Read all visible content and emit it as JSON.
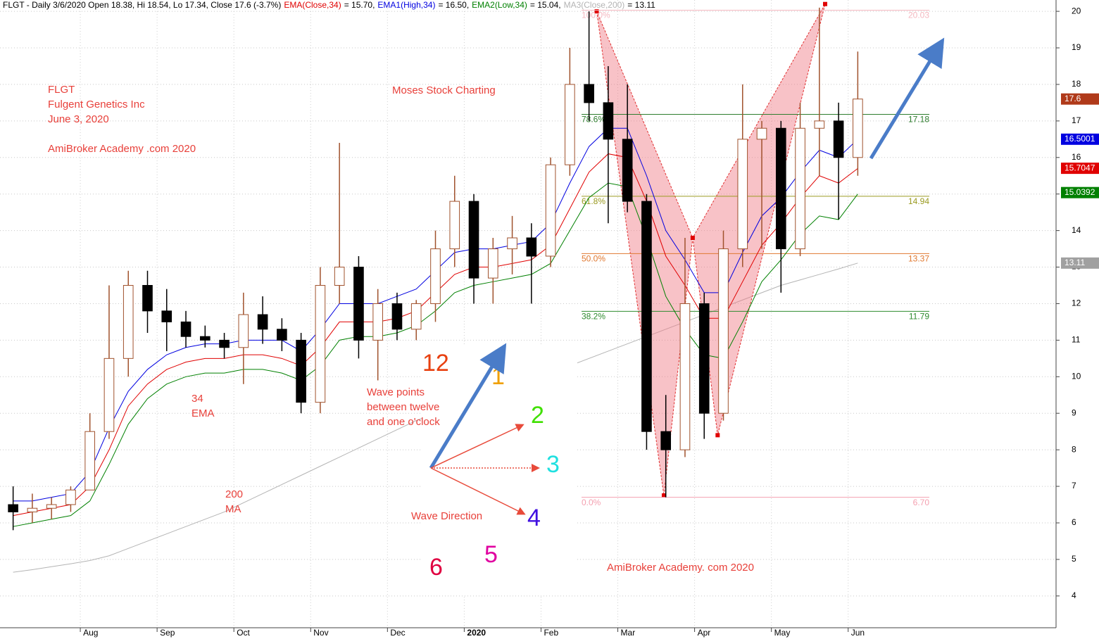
{
  "chart_data": {
    "type": "candlestick",
    "header": "FLGT - Daily 3/6/2020 Open 18.38, Hi 18.54, Lo 17.34, Close 17.6 (-3.7%)",
    "categories": [
      null,
      null,
      null,
      null,
      "Aug",
      null,
      null,
      null,
      "Sep",
      null,
      null,
      null,
      "Oct",
      null,
      null,
      null,
      "Nov",
      null,
      null,
      null,
      "Dec",
      null,
      null,
      null,
      "2020",
      null,
      null,
      null,
      "Feb",
      null,
      null,
      null,
      "Mar",
      null,
      null,
      null,
      "Apr",
      null,
      null,
      null,
      "May",
      null,
      null,
      null,
      "Jun"
    ],
    "open": [
      6.5,
      6.3,
      6.4,
      6.5,
      6.9,
      8.5,
      10.5,
      12.5,
      11.8,
      11.5,
      11.1,
      11.0,
      10.8,
      11.7,
      11.3,
      11.0,
      9.3,
      12.5,
      13.0,
      11.0,
      12.0,
      11.3,
      12.0,
      13.5,
      14.8,
      12.7,
      13.5,
      13.8,
      13.3,
      15.8,
      18.0,
      17.5,
      16.5,
      14.8,
      8.5,
      8.0,
      12.0,
      9.0,
      13.5,
      16.5,
      16.8,
      13.5,
      16.8,
      17.0,
      16.0
    ],
    "high": [
      7.0,
      6.8,
      6.7,
      7.0,
      9.0,
      12.5,
      12.9,
      12.9,
      12.4,
      11.8,
      11.4,
      11.2,
      12.3,
      12.2,
      11.6,
      11.2,
      13.0,
      16.4,
      13.3,
      12.4,
      12.3,
      12.1,
      14.0,
      15.5,
      15.0,
      13.8,
      14.4,
      14.2,
      16.0,
      19.0,
      20.0,
      18.5,
      18.0,
      15.0,
      9.5,
      13.8,
      12.3,
      14.0,
      18.0,
      17.0,
      17.0,
      17.5,
      20.1,
      17.5,
      18.9
    ],
    "low": [
      5.8,
      6.0,
      6.1,
      6.3,
      6.9,
      8.3,
      10.0,
      11.2,
      10.7,
      10.8,
      10.8,
      10.5,
      9.8,
      10.9,
      10.7,
      9.0,
      9.0,
      12.0,
      10.5,
      9.9,
      11.0,
      11.0,
      11.5,
      13.0,
      12.0,
      12.0,
      12.8,
      12.0,
      13.0,
      15.5,
      17.0,
      14.2,
      14.5,
      8.0,
      6.7,
      7.8,
      8.3,
      8.8,
      13.0,
      13.5,
      12.3,
      13.3,
      15.5,
      14.3,
      15.5
    ],
    "close": [
      6.3,
      6.4,
      6.5,
      6.9,
      8.5,
      10.5,
      12.5,
      11.8,
      11.5,
      11.1,
      11.0,
      10.8,
      11.7,
      11.3,
      11.0,
      9.3,
      12.5,
      13.0,
      11.0,
      12.0,
      11.3,
      12.0,
      13.5,
      14.8,
      12.7,
      13.5,
      13.8,
      13.3,
      15.8,
      18.0,
      17.5,
      16.5,
      14.8,
      8.5,
      8.0,
      12.0,
      9.0,
      13.5,
      16.5,
      16.8,
      13.5,
      16.8,
      17.0,
      16.0,
      17.6
    ],
    "up_color": "#a0522d",
    "down_color": "#000000",
    "series": [
      {
        "name": "EMA(Close,34)",
        "legend_label": "= 15.70,",
        "color": "#e00000",
        "values": [
          6.2,
          6.3,
          6.4,
          6.5,
          7.0,
          8.0,
          9.2,
          9.8,
          10.2,
          10.4,
          10.5,
          10.5,
          10.6,
          10.6,
          10.5,
          10.3,
          10.8,
          11.5,
          11.5,
          11.5,
          11.6,
          11.8,
          12.3,
          12.8,
          13.0,
          13.0,
          13.1,
          13.2,
          13.6,
          14.6,
          15.6,
          16.1,
          16.0,
          14.8,
          13.3,
          12.5,
          11.6,
          11.6,
          12.6,
          13.6,
          14.2,
          14.9,
          15.5,
          15.3,
          15.7
        ]
      },
      {
        "name": "EMA1(High,34)",
        "legend_label": "= 16.50,",
        "color": "#0000e0",
        "values": [
          6.6,
          6.6,
          6.7,
          6.8,
          7.4,
          8.6,
          9.6,
          10.2,
          10.6,
          10.8,
          10.9,
          10.9,
          11.0,
          11.0,
          11.0,
          10.7,
          11.3,
          12.0,
          12.0,
          12.0,
          12.2,
          12.4,
          12.9,
          13.4,
          13.5,
          13.5,
          13.6,
          13.7,
          14.2,
          15.3,
          16.3,
          16.8,
          16.8,
          15.5,
          14.0,
          13.2,
          12.3,
          12.3,
          13.4,
          14.4,
          14.9,
          15.6,
          16.2,
          16.0,
          16.5
        ]
      },
      {
        "name": "EMA2(Low,34)",
        "legend_label": "= 15.04,",
        "color": "#008000",
        "values": [
          5.9,
          6.0,
          6.1,
          6.2,
          6.6,
          7.6,
          8.7,
          9.4,
          9.8,
          10.0,
          10.1,
          10.1,
          10.2,
          10.2,
          10.1,
          9.9,
          10.3,
          11.0,
          11.1,
          11.1,
          11.2,
          11.4,
          11.8,
          12.3,
          12.5,
          12.6,
          12.7,
          12.8,
          13.1,
          14.0,
          14.9,
          15.3,
          15.2,
          13.8,
          12.2,
          11.3,
          10.6,
          10.5,
          11.5,
          12.6,
          13.2,
          13.9,
          14.4,
          14.3,
          15.0
        ]
      },
      {
        "name": "MA3(Close,200)",
        "legend_label": "= 13.11",
        "color": "#b4b4b4",
        "values": [
          4.65,
          4.72,
          4.8,
          4.88,
          4.97,
          5.1,
          5.3,
          5.5,
          5.7,
          5.9,
          6.1,
          6.3,
          6.55,
          6.8,
          7.05,
          7.3,
          7.55,
          7.8,
          8.05,
          8.3,
          8.55,
          8.8,
          9.0,
          9.2,
          9.4,
          9.6,
          9.8,
          9.95,
          10.1,
          10.3,
          10.5,
          10.7,
          10.9,
          11.1,
          11.3,
          11.5,
          11.7,
          11.9,
          12.1,
          12.3,
          12.5,
          12.65,
          12.8,
          12.95,
          13.11
        ]
      }
    ],
    "ylim": [
      3.13,
      20.31
    ],
    "yticks": [
      4,
      5,
      6,
      7,
      8,
      9,
      10,
      11,
      12,
      13,
      14,
      15,
      16,
      17,
      18,
      19,
      20
    ],
    "grid": true,
    "price_tags": [
      {
        "value": 17.6,
        "color": "#b03a1a"
      },
      {
        "value": 16.5001,
        "color": "#0000e0"
      },
      {
        "value": 15.7047,
        "color": "#e00000"
      },
      {
        "value": 15.0392,
        "color": "#008000"
      },
      {
        "value": 13.11,
        "color": "#a0a0a0"
      }
    ],
    "fib_levels": [
      {
        "level": "100.0%",
        "value": 20.03,
        "color": "#f4b8c0"
      },
      {
        "level": "78.6%",
        "value": 17.18,
        "color": "#2e7d2e"
      },
      {
        "level": "61.8%",
        "value": 14.94,
        "color": "#9a9a20"
      },
      {
        "level": "50.0%",
        "value": 13.37,
        "color": "#e07830"
      },
      {
        "level": "38.2%",
        "value": 11.79,
        "color": "#2e8b2e"
      },
      {
        "level": "0.0%",
        "value": {
          "value": 6.7,
          "label": "6.70"
        },
        "color": "#f4a0b0"
      }
    ],
    "pattern": {
      "x": [
        30.4,
        33.9,
        35.4,
        36.7,
        42.3
      ],
      "values": [
        20.0,
        6.75,
        13.8,
        8.4,
        20.2
      ]
    },
    "annotations": {
      "ticker": "FLGT",
      "company": "Fulgent Genetics Inc",
      "date": "June 3, 2020",
      "site": "AmiBroker Academy .com 2020",
      "author": "Moses Stock Charting",
      "ema_a": "34",
      "ema_b": "EMA",
      "ma_a": "200",
      "ma_b": "MA",
      "wave_a": "Wave points",
      "wave_b": "between twelve",
      "wave_c": "and one o'clock",
      "wave_direction": "Wave Direction",
      "site2": "AmiBroker Academy. com 2020",
      "clock": [
        "12",
        "1",
        "2",
        "3",
        "4",
        "5",
        "6"
      ]
    }
  }
}
